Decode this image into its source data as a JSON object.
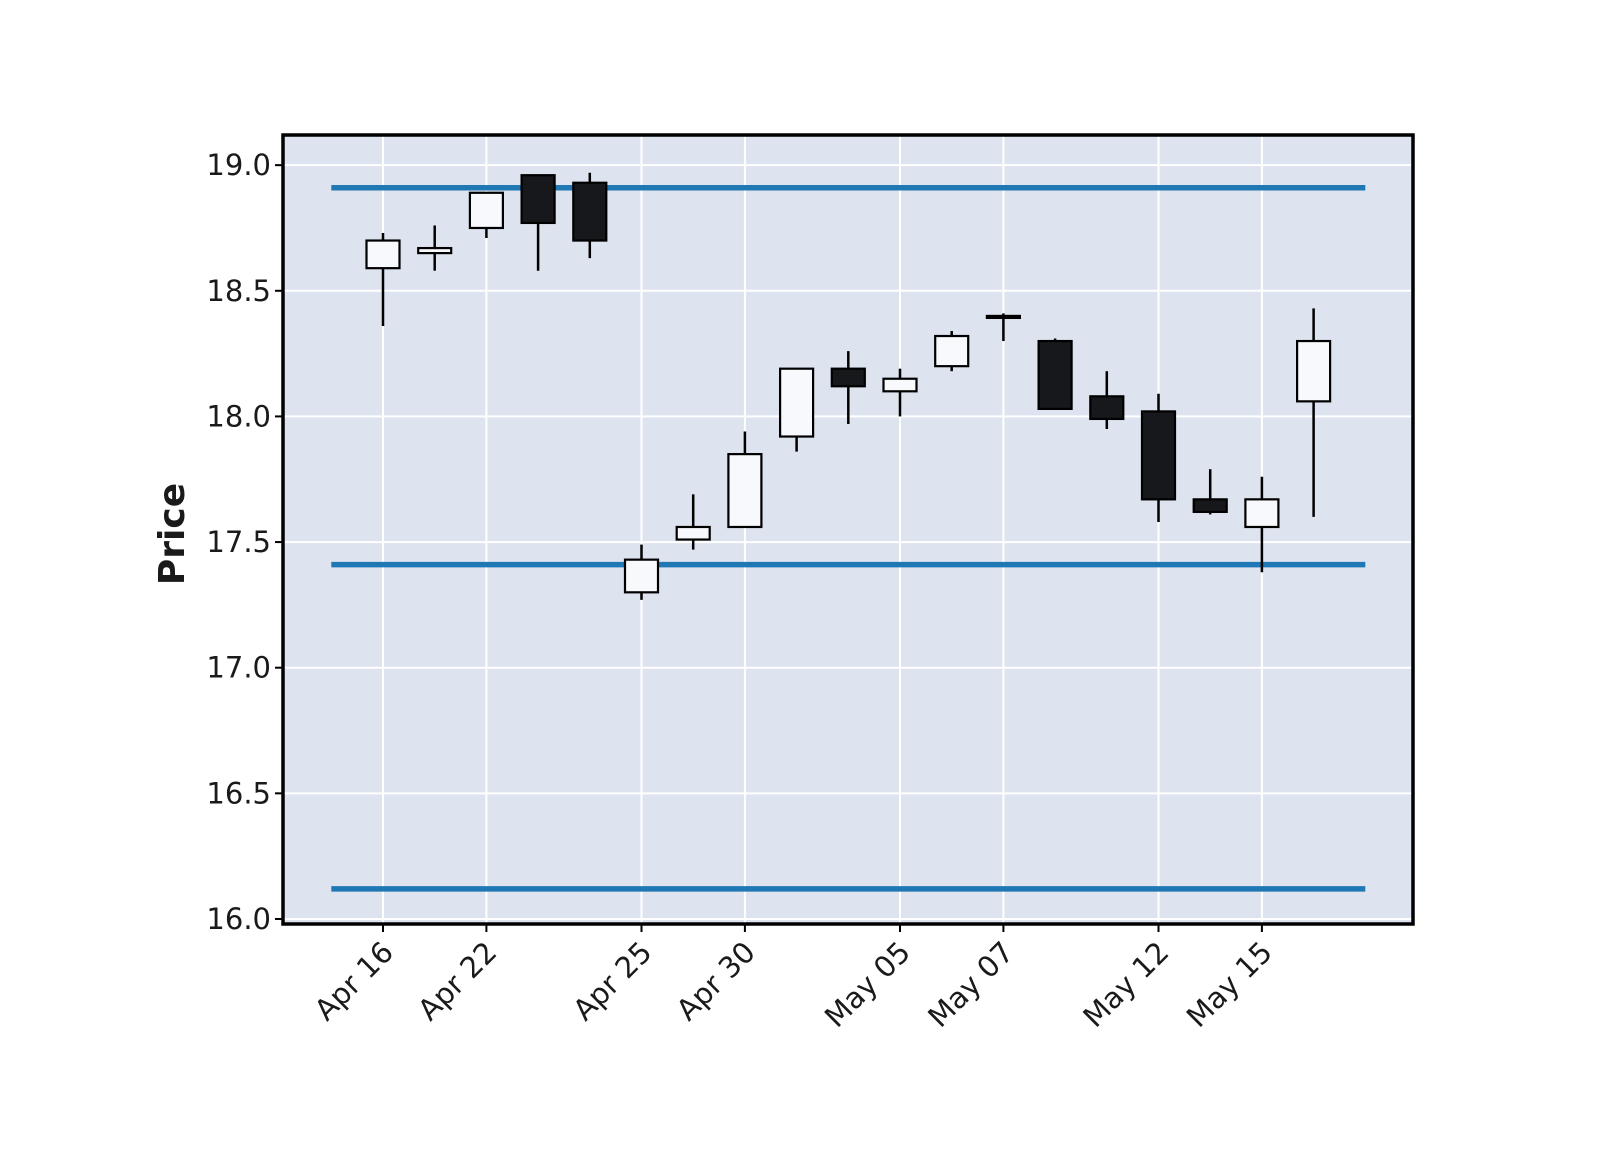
{
  "chart_data": {
    "type": "candlestick",
    "title": "",
    "xlabel": "",
    "ylabel": "Price",
    "ylim": [
      15.98,
      19.12
    ],
    "yticks": [
      16.0,
      16.5,
      17.0,
      17.5,
      18.0,
      18.5,
      19.0
    ],
    "ytick_labels": [
      "16.0",
      "16.5",
      "17.0",
      "17.5",
      "18.0",
      "18.5",
      "19.0"
    ],
    "xtick_labels": [
      "Apr 16",
      "Apr 22",
      "Apr 25",
      "Apr 30",
      "May 05",
      "May 07",
      "May 12",
      "May 15"
    ],
    "xtick_indices": [
      0,
      2,
      5,
      7,
      10,
      12,
      15,
      17
    ],
    "grid": true,
    "colors": {
      "background": "#dde3ef",
      "grid": "#ffffff",
      "up_fill": "#f7f9fc",
      "down_fill": "#16181b",
      "edge": "#000000",
      "hline": "#1f77b4"
    },
    "hlines": [
      18.91,
      17.41,
      16.12
    ],
    "candles": [
      {
        "date": "Apr 16",
        "open": 18.59,
        "high": 18.73,
        "low": 18.36,
        "close": 18.7
      },
      {
        "date": "Apr 17",
        "open": 18.65,
        "high": 18.76,
        "low": 18.58,
        "close": 18.67
      },
      {
        "date": "Apr 22",
        "open": 18.75,
        "high": 18.89,
        "low": 18.71,
        "close": 18.89
      },
      {
        "date": "Apr 23",
        "open": 18.96,
        "high": 18.96,
        "low": 18.58,
        "close": 18.77
      },
      {
        "date": "Apr 24",
        "open": 18.93,
        "high": 18.97,
        "low": 18.63,
        "close": 18.7
      },
      {
        "date": "Apr 25",
        "open": 17.3,
        "high": 17.49,
        "low": 17.27,
        "close": 17.43
      },
      {
        "date": "Apr 29",
        "open": 17.51,
        "high": 17.69,
        "low": 17.47,
        "close": 17.56
      },
      {
        "date": "Apr 30",
        "open": 17.56,
        "high": 17.94,
        "low": 17.56,
        "close": 17.85
      },
      {
        "date": "May 01",
        "open": 17.92,
        "high": 18.19,
        "low": 17.86,
        "close": 18.19
      },
      {
        "date": "May 02",
        "open": 18.19,
        "high": 18.26,
        "low": 17.97,
        "close": 18.12
      },
      {
        "date": "May 05",
        "open": 18.1,
        "high": 18.19,
        "low": 18.0,
        "close": 18.15
      },
      {
        "date": "May 06",
        "open": 18.2,
        "high": 18.34,
        "low": 18.18,
        "close": 18.32
      },
      {
        "date": "May 07",
        "open": 18.4,
        "high": 18.41,
        "low": 18.3,
        "close": 18.4
      },
      {
        "date": "May 08",
        "open": 18.3,
        "high": 18.31,
        "low": 18.03,
        "close": 18.03
      },
      {
        "date": "May 09",
        "open": 18.08,
        "high": 18.18,
        "low": 17.95,
        "close": 17.99
      },
      {
        "date": "May 12",
        "open": 18.02,
        "high": 18.09,
        "low": 17.58,
        "close": 17.67
      },
      {
        "date": "May 13",
        "open": 17.67,
        "high": 17.79,
        "low": 17.61,
        "close": 17.62
      },
      {
        "date": "May 15",
        "open": 17.56,
        "high": 17.76,
        "low": 17.38,
        "close": 17.67
      },
      {
        "date": "May 16",
        "open": 18.06,
        "high": 18.43,
        "low": 17.6,
        "close": 18.3
      }
    ]
  }
}
